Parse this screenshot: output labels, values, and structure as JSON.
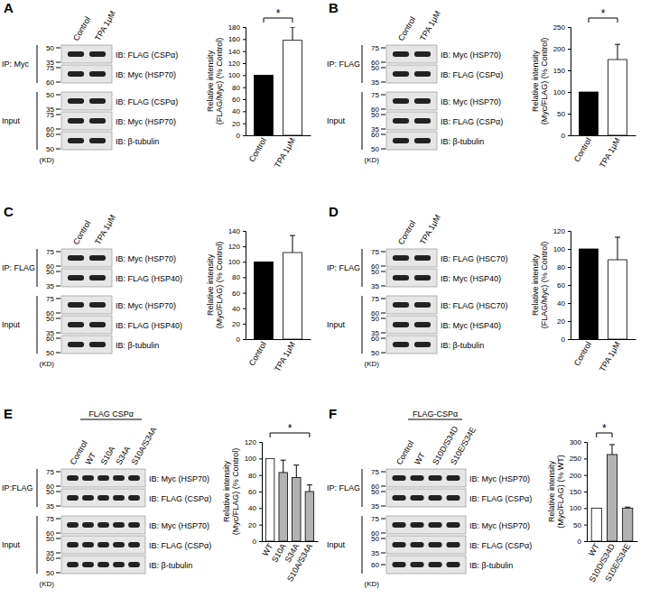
{
  "chart_data": [
    {
      "type": "bar",
      "categories": [
        "Control",
        "TPA 1μM"
      ],
      "values": [
        100,
        158
      ],
      "errors": [
        null,
        22
      ],
      "colors": [
        "#000000",
        "#ffffff"
      ],
      "y_label": [
        "Relative intensity",
        "(FLAG/Myc) (% Control)"
      ],
      "ylim": [
        0,
        180
      ],
      "yticks": [
        0,
        20,
        40,
        60,
        80,
        100,
        120,
        140,
        160,
        180
      ],
      "significance": [
        {
          "label": "*",
          "pair": [
            0,
            1
          ]
        }
      ]
    },
    {
      "type": "bar",
      "categories": [
        "Control",
        "TPA 1μM"
      ],
      "values": [
        100,
        175
      ],
      "errors": [
        null,
        35
      ],
      "colors": [
        "#000000",
        "#ffffff"
      ],
      "y_label": [
        "Relative intensity",
        "(Myc/FLAG) (% Control)"
      ],
      "ylim": [
        0,
        250
      ],
      "yticks": [
        0,
        50,
        100,
        150,
        200,
        250
      ],
      "significance": [
        {
          "label": "*",
          "pair": [
            0,
            1
          ]
        }
      ]
    },
    {
      "type": "bar",
      "categories": [
        "Control",
        "TPA 1μM"
      ],
      "values": [
        100,
        112
      ],
      "errors": [
        null,
        22
      ],
      "colors": [
        "#000000",
        "#ffffff"
      ],
      "y_label": [
        "Relative intensity",
        "(Myc/FLAG) (% Control)"
      ],
      "ylim": [
        0,
        140
      ],
      "yticks": [
        0,
        20,
        40,
        60,
        80,
        100,
        120,
        140
      ]
    },
    {
      "type": "bar",
      "categories": [
        "Control",
        "TPA 1μM"
      ],
      "values": [
        100,
        88
      ],
      "errors": [
        null,
        25
      ],
      "colors": [
        "#000000",
        "#ffffff"
      ],
      "y_label": [
        "Relative intensity",
        "(FLAG/Myc) (% Control)"
      ],
      "ylim": [
        0,
        120
      ],
      "yticks": [
        0,
        20,
        40,
        60,
        80,
        100,
        120
      ]
    },
    {
      "type": "bar",
      "categories": [
        "WT",
        "S10A",
        "S34A",
        "S10A/S34A"
      ],
      "values": [
        100,
        83,
        77,
        60
      ],
      "errors": [
        null,
        15,
        15,
        8
      ],
      "colors": [
        "#ffffff",
        "#b3b3b3",
        "#b3b3b3",
        "#b3b3b3"
      ],
      "y_label": [
        "Relative intensity",
        "(Myc/FLAG) (% Control)"
      ],
      "ylim": [
        0,
        120
      ],
      "yticks": [
        0,
        20,
        40,
        60,
        80,
        100,
        120
      ],
      "significance": [
        {
          "label": "*",
          "pair": [
            0,
            3
          ]
        }
      ]
    },
    {
      "type": "bar",
      "categories": [
        "WT",
        "S10D/S34D",
        "S10E/S34E"
      ],
      "values": [
        100,
        262,
        100
      ],
      "errors": [
        null,
        30,
        3
      ],
      "colors": [
        "#ffffff",
        "#b3b3b3",
        "#b3b3b3"
      ],
      "y_label": [
        "Relative intensity",
        "(Myc/FLAG) (% WT)"
      ],
      "ylim": [
        0,
        300
      ],
      "yticks": [
        0,
        50,
        100,
        150,
        200,
        250,
        300
      ],
      "significance": [
        {
          "label": "*",
          "pair": [
            0,
            1
          ]
        }
      ]
    }
  ],
  "blots": [
    {
      "panel": "A",
      "lanes": [
        "Control",
        "TPA 1μM"
      ],
      "unit": "(KD)",
      "groups": [
        {
          "label": "IP: Myc",
          "rows": [
            {
              "label": "IB: FLAG (CSPα)",
              "markers": [
                50,
                35
              ]
            },
            {
              "label": "IB: Myc (HSP70)",
              "markers": [
                75,
                60
              ]
            }
          ]
        },
        {
          "label": "Input",
          "rows": [
            {
              "label": "IB: FLAG (CSPα)",
              "markers": [
                50,
                35
              ]
            },
            {
              "label": "IB: Myc (HSP70)",
              "markers": [
                75,
                60
              ]
            },
            {
              "label": "IB: β-tubulin",
              "markers": [
                60,
                50
              ]
            }
          ]
        }
      ]
    },
    {
      "panel": "B",
      "lanes": [
        "Control",
        "TPA 1μM"
      ],
      "unit": "(KD)",
      "groups": [
        {
          "label": "IP: FLAG",
          "rows": [
            {
              "label": "IB: Myc (HSP70)",
              "markers": [
                75,
                60
              ]
            },
            {
              "label": "IB: FLAG (CSPα)",
              "markers": [
                50,
                35
              ]
            }
          ]
        },
        {
          "label": "Input",
          "rows": [
            {
              "label": "IB: Myc (HSP70)",
              "markers": [
                75,
                60
              ]
            },
            {
              "label": "IB: FLAG (CSPα)",
              "markers": [
                50,
                35
              ]
            },
            {
              "label": "IB: β-tubulin",
              "markers": [
                60,
                50
              ]
            }
          ]
        }
      ]
    },
    {
      "panel": "C",
      "lanes": [
        "Control",
        "TPA 1μM"
      ],
      "unit": "(KD)",
      "groups": [
        {
          "label": "IP: FLAG",
          "rows": [
            {
              "label": "IB: Myc (HSP70)",
              "markers": [
                75,
                60
              ]
            },
            {
              "label": "IB: FLAG (HSP40)",
              "markers": [
                50,
                35
              ]
            }
          ]
        },
        {
          "label": "Input",
          "rows": [
            {
              "label": "IB: Myc (HSP70)",
              "markers": [
                75,
                60
              ]
            },
            {
              "label": "IB: FLAG (HSP40)",
              "markers": [
                50,
                35
              ]
            },
            {
              "label": "IB: β-tubulin",
              "markers": [
                60,
                50
              ]
            }
          ]
        }
      ]
    },
    {
      "panel": "D",
      "lanes": [
        "Control",
        "TPA 1μM"
      ],
      "unit": "(KD)",
      "groups": [
        {
          "label": "IP: FLAG",
          "rows": [
            {
              "label": "IB: FLAG (HSC70)",
              "markers": [
                75,
                60
              ]
            },
            {
              "label": "IB: Myc (HSP40)",
              "markers": [
                50,
                35
              ]
            }
          ]
        },
        {
          "label": "Input",
          "rows": [
            {
              "label": "IB: FLAG (HSC70)",
              "markers": [
                75,
                60
              ]
            },
            {
              "label": "IB: Myc (HSP40)",
              "markers": [
                50,
                35
              ]
            },
            {
              "label": "IB: β-tubulin",
              "markers": [
                60,
                50
              ]
            }
          ]
        }
      ]
    },
    {
      "panel": "E",
      "header": "FLAG CSPα",
      "lanes": [
        "Control",
        "WT",
        "S10A",
        "S34A",
        "S10A/S34A"
      ],
      "unit": "(KD)",
      "groups": [
        {
          "label": "IP:FLAG",
          "rows": [
            {
              "label": "IB: Myc (HSP70)",
              "markers": [
                75,
                60
              ]
            },
            {
              "label": "IB: FLAG (CSPα)",
              "markers": [
                50,
                35
              ]
            }
          ]
        },
        {
          "label": "Input",
          "rows": [
            {
              "label": "IB: Myc (HSP70)",
              "markers": [
                75,
                60
              ]
            },
            {
              "label": "IB: FLAG (CSPα)",
              "markers": [
                50,
                35
              ]
            },
            {
              "label": "IB: β-tubulin",
              "markers": [
                60,
                50
              ]
            }
          ]
        }
      ]
    },
    {
      "panel": "F",
      "header": "FLAG-CSPα",
      "lanes": [
        "Control",
        "WT",
        "S10D/S34D",
        "S10E/S34E"
      ],
      "unit": "(KD)",
      "groups": [
        {
          "label": "IP: FLAG",
          "rows": [
            {
              "label": "IB: Myc (HSP70)",
              "markers": [
                75,
                60
              ]
            },
            {
              "label": "IB: FLAG (CSPα)",
              "markers": [
                50,
                35
              ]
            }
          ]
        },
        {
          "label": "Input",
          "rows": [
            {
              "label": "IB: Myc (HSP70)",
              "markers": [
                75,
                60
              ]
            },
            {
              "label": "IB: FLAG (CSPα)",
              "markers": [
                50,
                35
              ]
            },
            {
              "label": "IB: β-tubulin",
              "markers": [
                60
              ]
            }
          ]
        }
      ]
    }
  ]
}
